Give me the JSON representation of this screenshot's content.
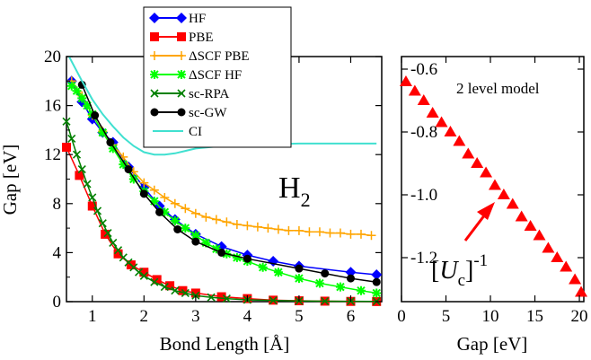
{
  "chart_data": [
    {
      "type": "line",
      "xlabel": "Bond Length [Å]",
      "ylabel": "Gap [eV]",
      "xlim": [
        0.5,
        6.6
      ],
      "ylim": [
        0,
        20
      ],
      "xticks": [
        1,
        2,
        3,
        4,
        5,
        6
      ],
      "yticks": [
        0,
        4,
        8,
        12,
        16,
        20
      ],
      "annotation": {
        "molecule": "H",
        "subscript": "2"
      },
      "legend": {
        "placement": "top-center-left",
        "entries": [
          "HF",
          "PBE",
          "ΔSCF PBE",
          "ΔSCF HF",
          "sc-RPA",
          "sc-GW",
          "CI"
        ]
      },
      "series": [
        {
          "name": "HF",
          "color": "#0000ff",
          "marker": "diamond",
          "x": [
            0.6,
            0.8,
            1.0,
            1.2,
            1.4,
            1.7,
            2.0,
            2.3,
            2.6,
            3.0,
            3.5,
            4.0,
            4.5,
            5.0,
            6.0,
            6.5
          ],
          "y": [
            18.0,
            16.3,
            14.9,
            13.8,
            13.0,
            11.0,
            9.3,
            7.8,
            6.7,
            5.5,
            4.5,
            3.8,
            3.3,
            2.9,
            2.4,
            2.2
          ]
        },
        {
          "name": "PBE",
          "color": "#ff0000",
          "marker": "square",
          "x": [
            0.5,
            0.75,
            1.0,
            1.25,
            1.5,
            1.75,
            2.0,
            2.25,
            2.5,
            2.75,
            3.0,
            3.5,
            4.0,
            4.5,
            5.0,
            5.5,
            6.0,
            6.5
          ],
          "y": [
            12.6,
            10.3,
            7.8,
            5.5,
            3.9,
            3.0,
            2.4,
            1.8,
            1.3,
            0.9,
            0.7,
            0.4,
            0.25,
            0.12,
            0.07,
            0.04,
            0.02,
            0.01
          ]
        },
        {
          "name": "ΔSCF PBE",
          "color": "#ffa500",
          "marker": "plus",
          "x": [
            0.6,
            0.8,
            1.0,
            1.2,
            1.4,
            1.6,
            1.8,
            2.0,
            2.2,
            2.4,
            2.6,
            2.8,
            3.0,
            3.2,
            3.4,
            3.6,
            3.8,
            4.0,
            4.2,
            4.4,
            4.6,
            4.8,
            5.0,
            5.2,
            5.4,
            5.6,
            5.8,
            6.0,
            6.2,
            6.4
          ],
          "y": [
            18.0,
            16.8,
            15.2,
            13.9,
            12.8,
            11.8,
            10.6,
            9.7,
            9.1,
            8.5,
            8.0,
            7.6,
            7.2,
            6.9,
            6.7,
            6.5,
            6.3,
            6.2,
            6.1,
            6.0,
            5.9,
            5.8,
            5.8,
            5.7,
            5.7,
            5.6,
            5.6,
            5.5,
            5.5,
            5.4
          ]
        },
        {
          "name": "ΔSCF HF",
          "color": "#00ff00",
          "marker": "star",
          "x": [
            0.6,
            0.7,
            0.8,
            0.9,
            1.0,
            1.2,
            1.4,
            1.6,
            1.8,
            2.0,
            2.2,
            2.4,
            2.6,
            2.8,
            3.0,
            3.2,
            3.4,
            3.6,
            3.8,
            4.0,
            4.3,
            4.6,
            5.0,
            5.4,
            5.8,
            6.2,
            6.5
          ],
          "y": [
            17.6,
            17.2,
            16.6,
            16.0,
            15.3,
            13.8,
            12.5,
            11.2,
            10.0,
            9.0,
            8.2,
            7.3,
            6.6,
            6.0,
            5.4,
            4.8,
            4.3,
            3.9,
            3.6,
            3.3,
            2.8,
            2.4,
            1.9,
            1.5,
            1.2,
            0.9,
            0.7
          ]
        },
        {
          "name": "sc-RPA",
          "color": "#008000",
          "marker": "x",
          "x": [
            0.5,
            0.6,
            0.7,
            0.8,
            0.9,
            1.0,
            1.1,
            1.2,
            1.3,
            1.4,
            1.5,
            1.6,
            1.7,
            1.8,
            1.9,
            2.0,
            2.2,
            2.4,
            2.6,
            2.8,
            3.0,
            3.3,
            3.6,
            4.0,
            4.5,
            5.0,
            5.5,
            6.0,
            6.5
          ],
          "y": [
            14.7,
            13.3,
            12.0,
            10.8,
            9.6,
            8.5,
            7.4,
            6.4,
            5.6,
            4.8,
            4.2,
            3.6,
            3.2,
            2.8,
            2.4,
            2.1,
            1.6,
            1.2,
            0.9,
            0.7,
            0.5,
            0.35,
            0.25,
            0.15,
            0.1,
            0.06,
            0.04,
            0.03,
            0.02
          ]
        },
        {
          "name": "sc-GW",
          "color": "#000000",
          "marker": "circle",
          "x": [
            0.8,
            1.05,
            1.35,
            1.7,
            2.0,
            2.3,
            2.65,
            3.0,
            3.5,
            4.0,
            5.0,
            5.5,
            6.0,
            6.5
          ],
          "y": [
            17.7,
            15.2,
            13.0,
            10.8,
            8.8,
            7.3,
            5.9,
            4.9,
            4.0,
            3.5,
            2.7,
            2.3,
            1.9,
            1.6
          ]
        },
        {
          "name": "CI",
          "color": "#40e0d0",
          "marker": "none",
          "x": [
            0.55,
            0.8,
            1.0,
            1.2,
            1.4,
            1.6,
            1.8,
            2.0,
            2.2,
            2.4,
            2.6,
            2.8,
            3.0,
            3.5,
            4.0,
            4.5,
            5.0,
            5.5,
            6.0,
            6.5
          ],
          "y": [
            20.0,
            18.0,
            16.5,
            15.3,
            14.3,
            13.4,
            12.7,
            12.2,
            12.0,
            12.0,
            12.1,
            12.3,
            12.5,
            12.7,
            12.8,
            12.85,
            12.9,
            12.9,
            12.9,
            12.9
          ]
        }
      ]
    },
    {
      "type": "scatter",
      "xlabel": "Gap [eV]",
      "ylabel": "",
      "xlim": [
        0,
        20.5
      ],
      "ylim": [
        -1.34,
        -0.56
      ],
      "xticks": [
        0,
        5,
        10,
        15,
        20
      ],
      "yticks": [
        -0.6,
        -0.8,
        -1.0,
        -1.2
      ],
      "ytick_labels": [
        "-0.6",
        "-0.8",
        "-1.0",
        "-1.2"
      ],
      "note": "2 level model",
      "annotation": {
        "bracket_open": "[",
        "symbol": "U",
        "subscript": "c",
        "bracket_close": "]",
        "superscript": "-1"
      },
      "series": [
        {
          "color": "#ff0000",
          "marker": "triangle",
          "x": [
            0.5,
            1.5,
            2.5,
            3.5,
            4.5,
            5.5,
            6.5,
            7.5,
            8.5,
            9.5,
            10.5,
            11.5,
            12.5,
            13.5,
            14.5,
            15.5,
            16.5,
            17.5,
            18.5,
            19.5,
            20.2
          ],
          "y": [
            -0.64,
            -0.67,
            -0.7,
            -0.74,
            -0.77,
            -0.8,
            -0.83,
            -0.87,
            -0.9,
            -0.93,
            -0.97,
            -1.0,
            -1.03,
            -1.07,
            -1.1,
            -1.13,
            -1.17,
            -1.2,
            -1.23,
            -1.27,
            -1.31
          ]
        }
      ]
    }
  ]
}
